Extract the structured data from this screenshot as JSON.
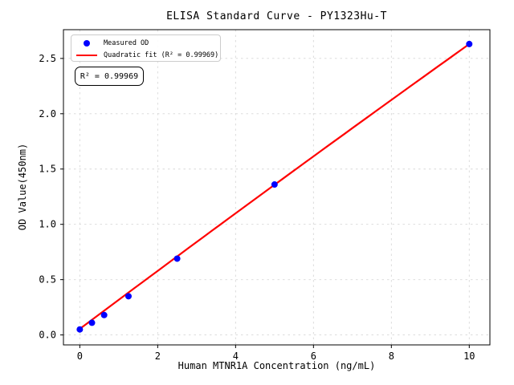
{
  "chart_data": {
    "type": "scatter",
    "title": "ELISA Standard Curve - PY1323Hu-T",
    "xlabel": "Human MTNR1A Concentration (ng/mL)",
    "ylabel": "OD Value(450nm)",
    "xlim": [
      -0.42,
      10.53
    ],
    "ylim": [
      -0.09,
      2.76
    ],
    "x_ticks": [
      0,
      2,
      4,
      6,
      8,
      10
    ],
    "x_tick_labels": [
      "0",
      "2",
      "4",
      "6",
      "8",
      "10"
    ],
    "y_ticks": [
      0.0,
      0.5,
      1.0,
      1.5,
      2.0,
      2.5
    ],
    "y_tick_labels": [
      "0.0",
      "0.5",
      "1.0",
      "1.5",
      "2.0",
      "2.5"
    ],
    "grid": true,
    "grid_color": "#d8d8d8",
    "grid_style": "dashed",
    "legend_position": "upper left",
    "series": [
      {
        "name": "Measured OD",
        "type": "scatter",
        "marker": "circle",
        "color": "#0000ff",
        "x": [
          0,
          0.312,
          0.625,
          1.25,
          2.5,
          5,
          10
        ],
        "y": [
          0.05,
          0.11,
          0.18,
          0.35,
          0.69,
          1.36,
          2.63
        ]
      },
      {
        "name": "Quadratic fit (R² = 0.99969)",
        "type": "line",
        "color": "#ff0000",
        "r_squared": 0.99969,
        "fit": {
          "kind": "quadratic",
          "a": 0.055,
          "b": 0.2635,
          "c": -0.0006,
          "x_start": 0,
          "x_end": 10
        }
      }
    ],
    "annotation": "R² = 0.99969"
  }
}
